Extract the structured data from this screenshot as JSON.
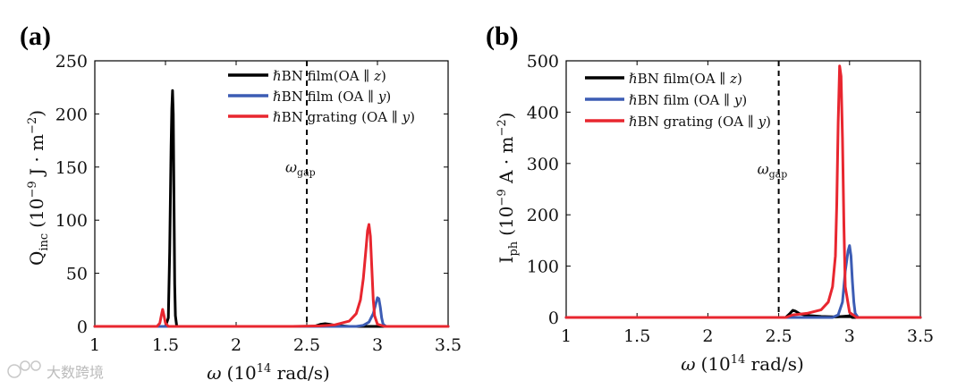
{
  "watermark": "大数跨境",
  "colors": {
    "series_black": "#000000",
    "series_blue": "#3c5cb4",
    "series_red": "#e8262f",
    "axis": "#000000"
  },
  "chart_data": [
    {
      "panel": "(a)",
      "type": "line",
      "xlabel": "ω (10^14 rad/s)",
      "xlabel_parts": {
        "symbol": "ω",
        "pre": "(10",
        "exp": "14",
        "post": " rad/s)"
      },
      "ylabel": "Q_inc (10^-9 J·m^-2)",
      "ylabel_parts": {
        "sym": "Q",
        "sub": "inc",
        "pre": "(10",
        "exp1": "−9",
        "mid": " J · m",
        "exp2": "−2",
        "post": ")"
      },
      "xlim": [
        1,
        3.5
      ],
      "ylim": [
        0,
        250
      ],
      "xticks": [
        "1",
        "1.5",
        "2",
        "2.5",
        "3",
        "3.5"
      ],
      "yticks": [
        "0",
        "50",
        "100",
        "150",
        "200",
        "250"
      ],
      "gap_line": {
        "x": 2.5,
        "label_sym": "ω",
        "label_sub": "gap",
        "label_y": 145
      },
      "legend": {
        "location": "top-right"
      },
      "series": [
        {
          "name": "hBN film(OA ∥ z)",
          "label": {
            "h": "ℏ",
            "rest": "BN film(OA ∥ ",
            "var": "z",
            "close": ")"
          },
          "color": "#000000",
          "x": [
            1,
            1.4,
            1.5,
            1.52,
            1.53,
            1.54,
            1.545,
            1.55,
            1.555,
            1.56,
            1.565,
            1.57,
            1.58,
            1.62,
            2.5,
            2.55,
            2.6,
            2.63,
            2.66,
            2.7,
            2.8,
            3.5
          ],
          "y": [
            0,
            0,
            0,
            8,
            70,
            170,
            205,
            222,
            200,
            120,
            40,
            10,
            0,
            0,
            0,
            0,
            2,
            2.5,
            2,
            1,
            0,
            0
          ]
        },
        {
          "name": "hBN film (OA ∥ y)",
          "label": {
            "h": "ℏ",
            "rest": "BN film (OA ∥ ",
            "var": "y",
            "close": ")"
          },
          "color": "#3c5cb4",
          "x": [
            1,
            2.85,
            2.9,
            2.94,
            2.97,
            2.99,
            3.0,
            3.01,
            3.02,
            3.03,
            3.04,
            3.06,
            3.5
          ],
          "y": [
            0,
            0,
            1,
            4,
            12,
            22,
            27,
            26,
            18,
            8,
            2,
            0,
            0
          ]
        },
        {
          "name": "hBN grating (OA ∥ y)",
          "label": {
            "h": "ℏ",
            "rest": "BN grating (OA ∥ ",
            "var": "y",
            "close": ")"
          },
          "color": "#e8262f",
          "x": [
            1,
            1.44,
            1.46,
            1.47,
            1.48,
            1.49,
            1.5,
            1.52,
            2.4,
            2.6,
            2.7,
            2.8,
            2.85,
            2.88,
            2.9,
            2.92,
            2.93,
            2.94,
            2.95,
            2.96,
            2.97,
            2.98,
            3.0,
            3.05,
            3.5
          ],
          "y": [
            0,
            0,
            3,
            10,
            16,
            10,
            3,
            0,
            0,
            0.5,
            1.5,
            5,
            12,
            25,
            45,
            75,
            90,
            96,
            85,
            55,
            25,
            10,
            2,
            0,
            0
          ]
        }
      ]
    },
    {
      "panel": "(b)",
      "type": "line",
      "xlabel": "ω (10^14 rad/s)",
      "xlabel_parts": {
        "symbol": "ω",
        "pre": "(10",
        "exp": "14",
        "post": " rad/s)"
      },
      "ylabel": "I_ph (10^-9 A·m^-2)",
      "ylabel_parts": {
        "sym": "I",
        "sub": "ph",
        "pre": "(10",
        "exp1": "−9",
        "mid": " A · m",
        "exp2": "−2",
        "post": ")"
      },
      "xlim": [
        1,
        3.5
      ],
      "ylim": [
        0,
        500
      ],
      "xticks": [
        "1",
        "1.5",
        "2",
        "2.5",
        "3",
        "3.5"
      ],
      "yticks": [
        "0",
        "100",
        "200",
        "300",
        "400",
        "500"
      ],
      "gap_line": {
        "x": 2.5,
        "label_sym": "ω",
        "label_sub": "gap",
        "label_y": 280
      },
      "legend": {
        "location": "top-left"
      },
      "series": [
        {
          "name": "hBN film(OA ∥ z)",
          "label": {
            "h": "ℏ",
            "rest": "BN film(OA ∥ ",
            "var": "z",
            "close": ")"
          },
          "color": "#000000",
          "x": [
            1,
            2.55,
            2.58,
            2.6,
            2.62,
            2.65,
            2.7,
            2.8,
            2.9,
            2.95,
            3.0,
            3.02,
            3.5
          ],
          "y": [
            0,
            0,
            8,
            14,
            12,
            7,
            4,
            2,
            1,
            2,
            3,
            0,
            0
          ]
        },
        {
          "name": "hBN film (OA ∥ y)",
          "label": {
            "h": "ℏ",
            "rest": "BN film (OA ∥ ",
            "var": "y",
            "close": ")"
          },
          "color": "#3c5cb4",
          "x": [
            1,
            2.88,
            2.92,
            2.95,
            2.97,
            2.99,
            3.0,
            3.01,
            3.02,
            3.03,
            3.04,
            3.06,
            3.5
          ],
          "y": [
            0,
            0,
            5,
            30,
            90,
            130,
            140,
            120,
            70,
            30,
            8,
            0,
            0
          ]
        },
        {
          "name": "hBN grating (OA ∥ y)",
          "label": {
            "h": "ℏ",
            "rest": "BN grating (OA ∥ ",
            "var": "y",
            "close": ")"
          },
          "color": "#e8262f",
          "x": [
            1,
            2.55,
            2.6,
            2.7,
            2.8,
            2.85,
            2.88,
            2.9,
            2.91,
            2.92,
            2.93,
            2.94,
            2.95,
            2.96,
            2.97,
            3.0,
            3.05,
            3.5
          ],
          "y": [
            0,
            0,
            5,
            8,
            15,
            30,
            60,
            120,
            220,
            380,
            490,
            470,
            350,
            180,
            60,
            10,
            0,
            0
          ]
        }
      ]
    }
  ]
}
